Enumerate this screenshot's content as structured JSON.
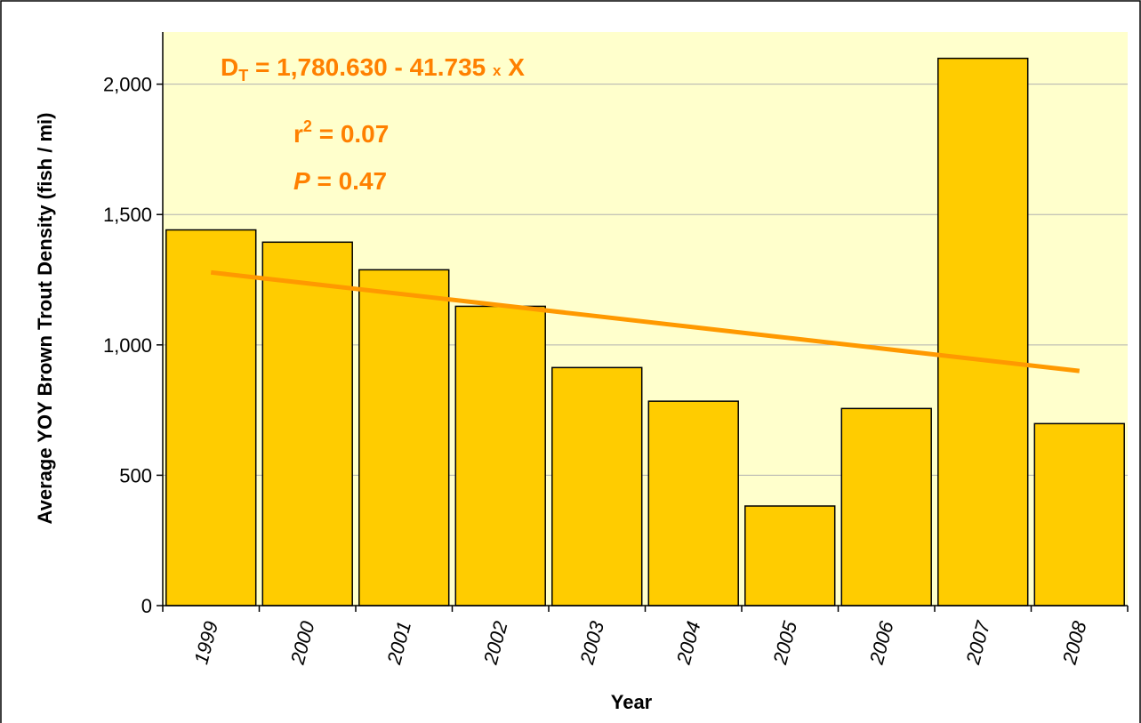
{
  "chart_data": {
    "type": "bar",
    "x_label": "Year",
    "y_label": "Average YOY Brown Trout Density (fish / mi)",
    "categories": [
      "1999",
      "2000",
      "2001",
      "2002",
      "2003",
      "2004",
      "2005",
      "2006",
      "2007",
      "2008"
    ],
    "values": [
      1441,
      1394,
      1288,
      1148,
      913,
      784,
      382,
      756,
      2099,
      698
    ],
    "color": "#ffcc00",
    "trend": {
      "color": "#ff9900",
      "values": [
        1278,
        1236,
        1194,
        1152,
        1110,
        1068,
        1026,
        984,
        942,
        900
      ]
    },
    "ylim": [
      0,
      2200
    ],
    "yticks": [
      0,
      500,
      {
        "value": 1000,
        "label": "1,000"
      },
      {
        "value": 1500,
        "label": "1,500"
      },
      {
        "value": 2000,
        "label": "2,000"
      }
    ],
    "grid": true,
    "plot_background": "#ffffcc",
    "annotation_color": "#ff8000",
    "annotations": [
      [
        "D",
        "T",
        " = 1,780.630 - 41.735 ",
        "x",
        " X"
      ],
      [
        "r",
        "2",
        " = 0.07"
      ],
      [
        "P",
        " = 0.47"
      ]
    ]
  }
}
